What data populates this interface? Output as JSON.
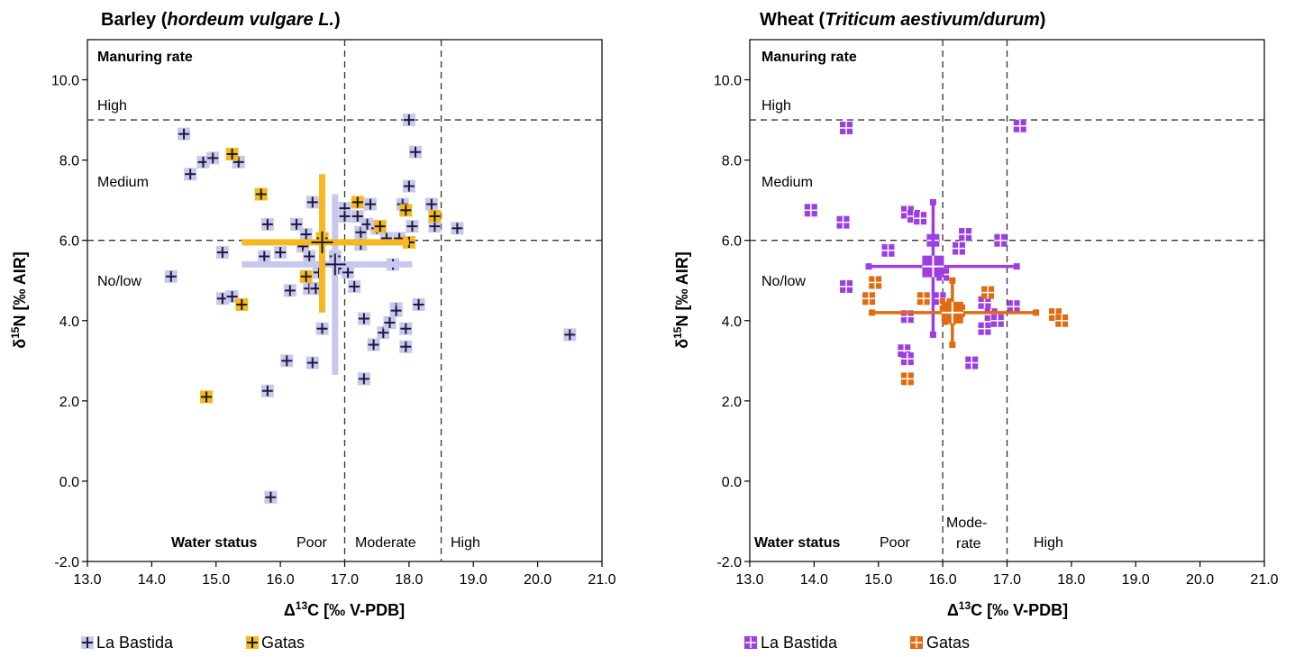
{
  "chart_data": [
    {
      "type": "scatter",
      "title": {
        "pre": "Barley (",
        "italic": "hordeum vulgare L.",
        "post": ")"
      },
      "xlabel": {
        "pre": "Δ",
        "sup": "13",
        "post": "C [‰ V-PDB]"
      },
      "ylabel": {
        "pre": "δ",
        "sup": "15",
        "post": "N [‰ AIR]"
      },
      "xlim": [
        13,
        21
      ],
      "ylim": [
        -2,
        11
      ],
      "xticks": [
        "13.0",
        "14.0",
        "15.0",
        "16.0",
        "17.0",
        "18.0",
        "19.0",
        "20.0",
        "21.0"
      ],
      "yticks": [
        "-2.0",
        "0.0",
        "2.0",
        "4.0",
        "6.0",
        "8.0",
        "10.0"
      ],
      "manuring_rate": {
        "heading": "Manuring rate",
        "high": "High",
        "medium": "Medium",
        "low": "No/low"
      },
      "water_status": {
        "heading": "Water status",
        "labels": [
          "Poor",
          "Moderate",
          "High"
        ]
      },
      "hlines": [
        6,
        9
      ],
      "vlines": [
        17,
        18.5
      ],
      "series": [
        {
          "name": "La Bastida",
          "marker": "plus",
          "face": "#c8c8ee",
          "edge": "#1a1a3a",
          "mean": {
            "x": 16.85,
            "y": 5.4,
            "xerr": [
              15.4,
              18.05
            ],
            "yerr": [
              2.65,
              7.15
            ]
          },
          "points": [
            [
              14.5,
              8.65
            ],
            [
              14.6,
              7.65
            ],
            [
              14.8,
              7.95
            ],
            [
              14.95,
              8.05
            ],
            [
              15.35,
              7.95
            ],
            [
              14.3,
              5.1
            ],
            [
              15.1,
              5.7
            ],
            [
              15.1,
              4.55
            ],
            [
              15.25,
              4.6
            ],
            [
              15.75,
              5.6
            ],
            [
              15.8,
              6.4
            ],
            [
              16.0,
              5.7
            ],
            [
              16.15,
              4.75
            ],
            [
              16.25,
              6.4
            ],
            [
              16.35,
              5.85
            ],
            [
              16.4,
              6.15
            ],
            [
              16.45,
              5.6
            ],
            [
              16.45,
              4.8
            ],
            [
              16.5,
              6.95
            ],
            [
              16.55,
              4.8
            ],
            [
              16.6,
              5.2
            ],
            [
              16.65,
              3.8
            ],
            [
              16.85,
              5.6
            ],
            [
              16.9,
              5.3
            ],
            [
              17.0,
              6.8
            ],
            [
              17.0,
              6.6
            ],
            [
              17.05,
              5.2
            ],
            [
              17.15,
              4.85
            ],
            [
              17.2,
              6.6
            ],
            [
              17.25,
              5.9
            ],
            [
              17.25,
              6.2
            ],
            [
              17.3,
              4.05
            ],
            [
              17.35,
              6.4
            ],
            [
              17.4,
              6.9
            ],
            [
              17.45,
              3.4
            ],
            [
              17.5,
              6.3
            ],
            [
              17.6,
              3.7
            ],
            [
              17.65,
              6.05
            ],
            [
              17.7,
              3.95
            ],
            [
              17.75,
              5.4
            ],
            [
              17.8,
              4.3
            ],
            [
              17.8,
              4.25
            ],
            [
              17.85,
              6.05
            ],
            [
              17.9,
              6.9
            ],
            [
              17.95,
              3.8
            ],
            [
              17.95,
              3.35
            ],
            [
              18.0,
              7.35
            ],
            [
              18.0,
              9.0
            ],
            [
              18.05,
              6.35
            ],
            [
              18.1,
              8.2
            ],
            [
              18.15,
              4.4
            ],
            [
              18.35,
              6.9
            ],
            [
              18.4,
              6.35
            ],
            [
              18.75,
              6.3
            ],
            [
              20.5,
              3.65
            ],
            [
              16.1,
              3.0
            ],
            [
              16.5,
              2.95
            ],
            [
              17.3,
              2.55
            ],
            [
              15.8,
              2.25
            ],
            [
              15.85,
              -0.4
            ]
          ]
        },
        {
          "name": "Gatas",
          "marker": "plus",
          "face": "#f5b820",
          "edge": "#1a1a1a",
          "mean": {
            "x": 16.65,
            "y": 5.95,
            "xerr": [
              15.4,
              18.0
            ],
            "yerr": [
              4.2,
              7.65
            ]
          },
          "points": [
            [
              15.25,
              8.15
            ],
            [
              15.7,
              7.15
            ],
            [
              16.4,
              5.1
            ],
            [
              15.4,
              4.4
            ],
            [
              14.85,
              2.1
            ],
            [
              16.65,
              6.05
            ],
            [
              17.2,
              6.95
            ],
            [
              17.55,
              6.35
            ],
            [
              17.95,
              6.75
            ],
            [
              18.0,
              5.95
            ],
            [
              18.4,
              6.6
            ]
          ]
        }
      ]
    },
    {
      "type": "scatter",
      "title": {
        "pre": "Wheat (",
        "italic": "Triticum aestivum/durum",
        "post": ")"
      },
      "xlabel": {
        "pre": "Δ",
        "sup": "13",
        "post": "C [‰ V-PDB]"
      },
      "ylabel": {
        "pre": "δ",
        "sup": "15",
        "post": "N [‰ AIR]"
      },
      "xlim": [
        13,
        21
      ],
      "ylim": [
        -2,
        11
      ],
      "xticks": [
        "13.0",
        "14.0",
        "15.0",
        "16.0",
        "17.0",
        "18.0",
        "19.0",
        "20.0",
        "21.0"
      ],
      "yticks": [
        "-2.0",
        "0.0",
        "2.0",
        "4.0",
        "6.0",
        "8.0",
        "10.0"
      ],
      "manuring_rate": {
        "heading": "Manuring rate",
        "high": "High",
        "medium": "Medium",
        "low": "No/low"
      },
      "water_status": {
        "heading": "Water status",
        "labels": [
          "Poor",
          "Mode-",
          "rate",
          "High"
        ]
      },
      "hlines": [
        6,
        9
      ],
      "vlines": [
        16,
        17
      ],
      "series": [
        {
          "name": "La Bastida",
          "marker": "square",
          "face": "#9b3fe0",
          "edge": "#ffffff",
          "mean": {
            "x": 15.85,
            "y": 5.35,
            "xerr": [
              14.85,
              17.15
            ],
            "yerr": [
              3.65,
              6.95
            ]
          },
          "points": [
            [
              13.95,
              6.75
            ],
            [
              14.45,
              6.45
            ],
            [
              14.5,
              8.8
            ],
            [
              14.5,
              4.85
            ],
            [
              15.15,
              5.75
            ],
            [
              15.45,
              6.7
            ],
            [
              15.55,
              6.6
            ],
            [
              15.65,
              6.55
            ],
            [
              15.85,
              6.0
            ],
            [
              15.95,
              4.55
            ],
            [
              16.0,
              5.15
            ],
            [
              16.25,
              5.8
            ],
            [
              16.35,
              6.15
            ],
            [
              16.9,
              6.0
            ],
            [
              17.2,
              8.85
            ],
            [
              16.65,
              4.45
            ],
            [
              16.75,
              4.15
            ],
            [
              16.85,
              4.0
            ],
            [
              17.1,
              4.35
            ],
            [
              16.65,
              3.8
            ],
            [
              16.45,
              2.95
            ],
            [
              15.45,
              4.1
            ],
            [
              15.4,
              3.25
            ],
            [
              15.45,
              3.05
            ]
          ]
        },
        {
          "name": "Gatas",
          "marker": "square",
          "face": "#e06b10",
          "edge": "#ffffff",
          "mean": {
            "x": 16.15,
            "y": 4.2,
            "xerr": [
              14.9,
              17.45
            ],
            "yerr": [
              3.4,
              5.0
            ]
          },
          "points": [
            [
              14.85,
              4.55
            ],
            [
              14.95,
              4.95
            ],
            [
              15.7,
              4.55
            ],
            [
              16.05,
              4.4
            ],
            [
              16.1,
              4.05
            ],
            [
              16.25,
              4.25
            ],
            [
              16.7,
              4.7
            ],
            [
              17.75,
              4.15
            ],
            [
              17.85,
              4.0
            ],
            [
              15.45,
              2.55
            ]
          ]
        }
      ]
    }
  ]
}
